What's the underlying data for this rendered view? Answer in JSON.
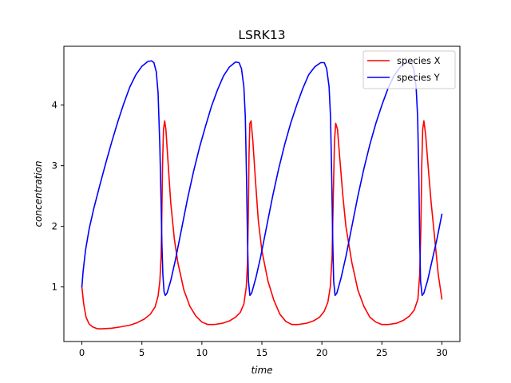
{
  "chart_data": {
    "type": "line",
    "title": "LSRK13",
    "xlabel": "time",
    "ylabel": "concentration",
    "xlim": [
      -1.5,
      31.5
    ],
    "ylim": [
      0.1,
      4.97
    ],
    "xticks": [
      0,
      5,
      10,
      15,
      20,
      25,
      30
    ],
    "yticks": [
      1,
      2,
      3,
      4
    ],
    "grid": false,
    "legend_position": "top-right",
    "series": [
      {
        "name": "species X",
        "color": "#ff0000",
        "points": [
          [
            0,
            1.0
          ],
          [
            0.15,
            0.72
          ],
          [
            0.35,
            0.5
          ],
          [
            0.6,
            0.39
          ],
          [
            0.9,
            0.34
          ],
          [
            1.3,
            0.31
          ],
          [
            1.7,
            0.31
          ],
          [
            2.5,
            0.32
          ],
          [
            3.2,
            0.34
          ],
          [
            4.0,
            0.37
          ],
          [
            4.6,
            0.41
          ],
          [
            5.2,
            0.47
          ],
          [
            5.7,
            0.55
          ],
          [
            6.1,
            0.67
          ],
          [
            6.35,
            0.85
          ],
          [
            6.5,
            1.1
          ],
          [
            6.6,
            1.5
          ],
          [
            6.65,
            2.0
          ],
          [
            6.72,
            3.0
          ],
          [
            6.8,
            3.6
          ],
          [
            6.9,
            3.74
          ],
          [
            7.0,
            3.6
          ],
          [
            7.2,
            3.0
          ],
          [
            7.4,
            2.4
          ],
          [
            7.7,
            1.8
          ],
          [
            8.0,
            1.4
          ],
          [
            8.5,
            0.95
          ],
          [
            9.0,
            0.68
          ],
          [
            9.5,
            0.52
          ],
          [
            10.0,
            0.42
          ],
          [
            10.5,
            0.38
          ],
          [
            11.0,
            0.38
          ],
          [
            11.7,
            0.4
          ],
          [
            12.3,
            0.44
          ],
          [
            12.8,
            0.5
          ],
          [
            13.2,
            0.58
          ],
          [
            13.5,
            0.72
          ],
          [
            13.7,
            1.0
          ],
          [
            13.8,
            1.4
          ],
          [
            13.87,
            2.2
          ],
          [
            13.93,
            3.2
          ],
          [
            14.0,
            3.7
          ],
          [
            14.1,
            3.74
          ],
          [
            14.25,
            3.4
          ],
          [
            14.45,
            2.8
          ],
          [
            14.7,
            2.1
          ],
          [
            15.0,
            1.6
          ],
          [
            15.5,
            1.1
          ],
          [
            16.0,
            0.78
          ],
          [
            16.5,
            0.55
          ],
          [
            17.0,
            0.43
          ],
          [
            17.5,
            0.38
          ],
          [
            18.0,
            0.38
          ],
          [
            18.7,
            0.4
          ],
          [
            19.3,
            0.44
          ],
          [
            19.8,
            0.5
          ],
          [
            20.2,
            0.6
          ],
          [
            20.5,
            0.75
          ],
          [
            20.7,
            1.0
          ],
          [
            20.85,
            1.5
          ],
          [
            20.95,
            2.5
          ],
          [
            21.05,
            3.4
          ],
          [
            21.15,
            3.7
          ],
          [
            21.3,
            3.6
          ],
          [
            21.5,
            3.1
          ],
          [
            21.75,
            2.5
          ],
          [
            22.0,
            2.0
          ],
          [
            22.5,
            1.4
          ],
          [
            23.0,
            0.95
          ],
          [
            23.5,
            0.68
          ],
          [
            24.0,
            0.5
          ],
          [
            24.5,
            0.42
          ],
          [
            25.0,
            0.38
          ],
          [
            25.5,
            0.38
          ],
          [
            26.2,
            0.4
          ],
          [
            26.8,
            0.45
          ],
          [
            27.3,
            0.52
          ],
          [
            27.7,
            0.62
          ],
          [
            28.0,
            0.8
          ],
          [
            28.15,
            1.2
          ],
          [
            28.25,
            2.0
          ],
          [
            28.32,
            3.0
          ],
          [
            28.4,
            3.6
          ],
          [
            28.5,
            3.74
          ],
          [
            28.65,
            3.5
          ],
          [
            28.85,
            3.0
          ],
          [
            29.1,
            2.4
          ],
          [
            29.4,
            1.8
          ],
          [
            29.7,
            1.2
          ],
          [
            30.0,
            0.8
          ]
        ]
      },
      {
        "name": "species Y",
        "color": "#0000ff",
        "points": [
          [
            0,
            1.0
          ],
          [
            0.1,
            1.25
          ],
          [
            0.3,
            1.6
          ],
          [
            0.6,
            1.95
          ],
          [
            1.0,
            2.3
          ],
          [
            1.5,
            2.68
          ],
          [
            2.0,
            3.05
          ],
          [
            2.5,
            3.4
          ],
          [
            3.0,
            3.73
          ],
          [
            3.5,
            4.03
          ],
          [
            4.0,
            4.3
          ],
          [
            4.5,
            4.5
          ],
          [
            5.0,
            4.64
          ],
          [
            5.5,
            4.72
          ],
          [
            5.8,
            4.73
          ],
          [
            6.0,
            4.7
          ],
          [
            6.2,
            4.55
          ],
          [
            6.35,
            4.2
          ],
          [
            6.5,
            3.3
          ],
          [
            6.6,
            2.4
          ],
          [
            6.67,
            1.7
          ],
          [
            6.75,
            1.2
          ],
          [
            6.85,
            0.92
          ],
          [
            6.95,
            0.86
          ],
          [
            7.1,
            0.9
          ],
          [
            7.4,
            1.1
          ],
          [
            7.8,
            1.45
          ],
          [
            8.3,
            1.95
          ],
          [
            8.8,
            2.45
          ],
          [
            9.3,
            2.9
          ],
          [
            9.8,
            3.3
          ],
          [
            10.3,
            3.65
          ],
          [
            10.8,
            3.98
          ],
          [
            11.3,
            4.25
          ],
          [
            11.8,
            4.48
          ],
          [
            12.3,
            4.63
          ],
          [
            12.8,
            4.71
          ],
          [
            13.1,
            4.7
          ],
          [
            13.3,
            4.6
          ],
          [
            13.5,
            4.3
          ],
          [
            13.62,
            3.8
          ],
          [
            13.72,
            2.8
          ],
          [
            13.8,
            1.8
          ],
          [
            13.88,
            1.1
          ],
          [
            14.0,
            0.86
          ],
          [
            14.15,
            0.9
          ],
          [
            14.5,
            1.15
          ],
          [
            14.9,
            1.5
          ],
          [
            15.4,
            2.0
          ],
          [
            15.9,
            2.5
          ],
          [
            16.4,
            2.95
          ],
          [
            16.9,
            3.35
          ],
          [
            17.4,
            3.7
          ],
          [
            17.9,
            4.0
          ],
          [
            18.4,
            4.27
          ],
          [
            18.9,
            4.5
          ],
          [
            19.4,
            4.63
          ],
          [
            19.9,
            4.7
          ],
          [
            20.2,
            4.7
          ],
          [
            20.4,
            4.6
          ],
          [
            20.6,
            4.3
          ],
          [
            20.72,
            3.8
          ],
          [
            20.82,
            2.8
          ],
          [
            20.9,
            1.8
          ],
          [
            20.98,
            1.1
          ],
          [
            21.1,
            0.86
          ],
          [
            21.25,
            0.9
          ],
          [
            21.6,
            1.15
          ],
          [
            22.0,
            1.5
          ],
          [
            22.5,
            2.0
          ],
          [
            23.0,
            2.5
          ],
          [
            23.5,
            2.95
          ],
          [
            24.0,
            3.35
          ],
          [
            24.5,
            3.7
          ],
          [
            25.0,
            4.0
          ],
          [
            25.5,
            4.27
          ],
          [
            26.0,
            4.48
          ],
          [
            26.5,
            4.62
          ],
          [
            27.0,
            4.7
          ],
          [
            27.4,
            4.7
          ],
          [
            27.65,
            4.6
          ],
          [
            27.85,
            4.3
          ],
          [
            27.98,
            3.8
          ],
          [
            28.08,
            2.8
          ],
          [
            28.15,
            1.8
          ],
          [
            28.22,
            1.1
          ],
          [
            28.35,
            0.86
          ],
          [
            28.5,
            0.9
          ],
          [
            28.8,
            1.1
          ],
          [
            29.2,
            1.45
          ],
          [
            29.6,
            1.8
          ],
          [
            30.0,
            2.2
          ]
        ]
      }
    ]
  }
}
